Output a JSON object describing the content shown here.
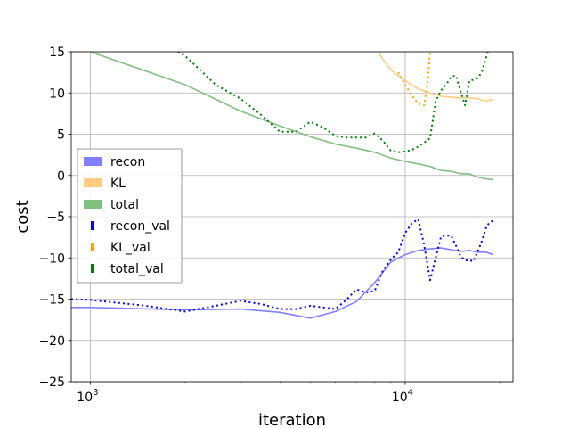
{
  "chart_data": {
    "type": "line",
    "title": "",
    "xlabel": "iteration",
    "ylabel": "cost",
    "xscale": "log",
    "xlim": [
      870,
      22000
    ],
    "ylim": [
      -25,
      15
    ],
    "grid": true,
    "legend_position": "center-left",
    "x_ticks": [
      {
        "value": 1000,
        "base": "10",
        "exp": "3"
      },
      {
        "value": 10000,
        "base": "10",
        "exp": "4"
      }
    ],
    "y_ticks": [
      {
        "value": 15,
        "label": "15"
      },
      {
        "value": 10,
        "label": "10"
      },
      {
        "value": 5,
        "label": "5"
      },
      {
        "value": 0,
        "label": "0"
      },
      {
        "value": -5,
        "label": "−5"
      },
      {
        "value": -10,
        "label": "−10"
      },
      {
        "value": -15,
        "label": "−15"
      },
      {
        "value": -20,
        "label": "−20"
      },
      {
        "value": -25,
        "label": "−25"
      }
    ],
    "series": [
      {
        "name": "recon",
        "color": "#8080ff",
        "style": "solid",
        "x": [
          870,
          1000,
          2000,
          3000,
          4000,
          5000,
          6000,
          7000,
          8000,
          9000,
          10000,
          11000,
          12000,
          13000,
          14000,
          15000,
          16000,
          17000,
          18000,
          19000
        ],
        "y": [
          -16.0,
          -16.0,
          -16.3,
          -16.2,
          -16.6,
          -17.3,
          -16.5,
          -15.3,
          -13.0,
          -10.5,
          -9.6,
          -9.1,
          -8.9,
          -8.8,
          -9.0,
          -9.2,
          -9.1,
          -9.3,
          -9.3,
          -9.6
        ]
      },
      {
        "name": "KL",
        "color": "#ffcc80",
        "style": "solid",
        "x": [
          8200,
          8700,
          9200,
          10000,
          11000,
          12000,
          13000,
          14000,
          15000,
          16000,
          17000,
          18000,
          19000
        ],
        "y": [
          15.0,
          13.5,
          12.5,
          11.5,
          10.5,
          10.0,
          9.6,
          9.5,
          9.4,
          9.4,
          9.3,
          9.0,
          9.2
        ]
      },
      {
        "name": "total",
        "color": "#80c080",
        "style": "solid",
        "x": [
          1000,
          2000,
          3000,
          4000,
          5000,
          6000,
          7000,
          8000,
          9000,
          10000,
          11000,
          12000,
          13000,
          14000,
          15000,
          16000,
          17000,
          18000,
          19000
        ],
        "y": [
          15.0,
          11.0,
          7.8,
          6.0,
          4.7,
          3.8,
          3.3,
          2.8,
          2.1,
          1.7,
          1.4,
          1.1,
          0.6,
          0.5,
          0.2,
          0.2,
          -0.2,
          -0.4,
          -0.5
        ]
      },
      {
        "name": "recon_val",
        "color": "#0000ff",
        "style": "dotted",
        "x": [
          870,
          1000,
          1500,
          2000,
          2500,
          3000,
          3500,
          4000,
          4500,
          5000,
          5500,
          6000,
          6500,
          7000,
          7500,
          8000,
          8500,
          9000,
          9500,
          10000,
          10500,
          11000,
          11500,
          12000,
          12500,
          13000,
          13500,
          14000,
          14500,
          15000,
          15500,
          16000,
          16500,
          17000,
          17500,
          18000,
          18500,
          19000
        ],
        "y": [
          -15.0,
          -15.1,
          -15.8,
          -16.5,
          -15.8,
          -15.2,
          -15.6,
          -16.2,
          -16.2,
          -15.8,
          -16.0,
          -16.2,
          -15.1,
          -13.8,
          -14.2,
          -14.0,
          -11.5,
          -10.2,
          -9.3,
          -7.0,
          -5.8,
          -5.3,
          -8.5,
          -12.7,
          -10.0,
          -7.4,
          -7.3,
          -7.3,
          -8.5,
          -9.8,
          -10.3,
          -10.3,
          -10.4,
          -9.2,
          -8.0,
          -6.5,
          -5.7,
          -5.5
        ]
      },
      {
        "name": "KL_val",
        "color": "#ffa500",
        "style": "dotted",
        "x": [
          9500,
          10000,
          10500,
          11000,
          11500,
          11800,
          12000
        ],
        "y": [
          12.5,
          11.0,
          9.7,
          8.7,
          8.5,
          11.5,
          15.0
        ]
      },
      {
        "name": "total_val",
        "color": "#008000",
        "style": "dotted",
        "x": [
          1900,
          2000,
          2500,
          3000,
          3500,
          4000,
          4500,
          5000,
          5500,
          6000,
          6500,
          7000,
          7500,
          8000,
          8500,
          9000,
          9500,
          10000,
          10500,
          11000,
          11500,
          12000,
          12500,
          13000,
          13500,
          14000,
          14500,
          15000,
          15500,
          16000,
          16500,
          17000,
          17500,
          18000,
          18300
        ],
        "y": [
          15.0,
          14.5,
          11.0,
          9.3,
          7.3,
          5.3,
          5.3,
          6.5,
          5.8,
          4.8,
          4.6,
          4.6,
          4.6,
          5.1,
          4.2,
          3.0,
          2.8,
          2.9,
          3.1,
          3.5,
          4.0,
          4.5,
          9.0,
          10.3,
          11.0,
          12.0,
          12.1,
          10.2,
          8.5,
          11.5,
          11.6,
          11.8,
          12.5,
          14.0,
          15.0
        ]
      }
    ]
  }
}
